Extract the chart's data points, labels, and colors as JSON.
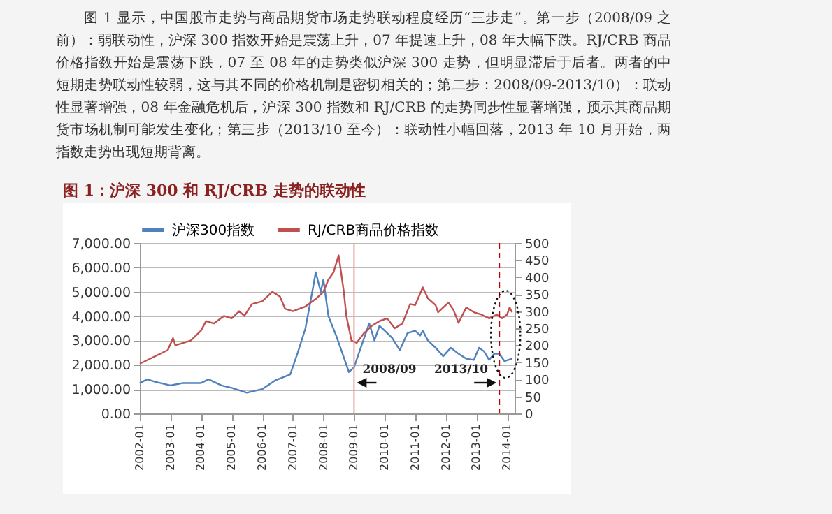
{
  "chart_data": {
    "type": "line",
    "title": "图 1：沪深 300 和 RJ/CRB 走势的联动性",
    "annotations": [
      "图 1 显示，中国股市走势与商品期货市场走势联动程度经历“三步走”。第一步（2008/09 之前）：弱联动性，沪深 300 指数开始是震荡上升，07 年提速上升，08 年大幅下跌。RJ/CRB 商品价格指数开始是震荡下跌，07 至 08 年的走势类似沪深 300 走势，但明显滞后于后者。两者的中短期走势联动性较弱，这与其不同的价格机制是密切相关的；第二步：2008/09-2013/10）：联动性显著增强，08 年金融危机后，沪深 300 指数和 RJ/CRB 的走势同步性显著增强，预示其商品期货市场机制可能发生变化；第三步（2013/10 至今）：联动性小幅回落，2013 年 10 月开始，两指数走势出现短期背离。"
    ],
    "series": [
      {
        "name": "沪深300指数",
        "color": "#4f81bd",
        "x": [
          "2002-01",
          "2002-04",
          "2002-07",
          "2003-01",
          "2003-06",
          "2004-01",
          "2004-04",
          "2004-09",
          "2005-01",
          "2005-07",
          "2006-01",
          "2006-06",
          "2006-12",
          "2007-03",
          "2007-06",
          "2007-09",
          "2007-10",
          "2007-12",
          "2008-01",
          "2008-03",
          "2008-06",
          "2008-09",
          "2008-11",
          "2009-01",
          "2009-04",
          "2009-07",
          "2009-09",
          "2009-11",
          "2010-01",
          "2010-04",
          "2010-07",
          "2010-10",
          "2011-01",
          "2011-03",
          "2011-04",
          "2011-06",
          "2011-09",
          "2011-12",
          "2012-03",
          "2012-06",
          "2012-09",
          "2012-12",
          "2013-02",
          "2013-04",
          "2013-06",
          "2013-08",
          "2013-10",
          "2013-12",
          "2014-03"
        ],
        "values": [
          1250,
          1400,
          1300,
          1150,
          1250,
          1250,
          1400,
          1150,
          1050,
          850,
          1000,
          1350,
          1600,
          2500,
          3500,
          5200,
          5800,
          5000,
          5500,
          4000,
          3200,
          2300,
          1700,
          1900,
          2800,
          3700,
          3000,
          3600,
          3400,
          3100,
          2600,
          3300,
          3400,
          3200,
          3400,
          3000,
          2700,
          2350,
          2700,
          2450,
          2250,
          2200,
          2700,
          2550,
          2200,
          2450,
          2450,
          2150,
          2250
        ]
      },
      {
        "name": "RJ/CRB商品价格指数",
        "color": "#c0504d",
        "axis": "y2",
        "x": [
          "2002-01",
          "2002-06",
          "2002-12",
          "2003-02",
          "2003-03",
          "2003-09",
          "2004-01",
          "2004-03",
          "2004-06",
          "2004-10",
          "2005-01",
          "2005-04",
          "2005-06",
          "2005-09",
          "2006-01",
          "2006-05",
          "2006-08",
          "2006-10",
          "2007-01",
          "2007-06",
          "2007-10",
          "2008-01",
          "2008-03",
          "2008-05",
          "2008-07",
          "2008-09",
          "2008-10",
          "2008-12",
          "2009-02",
          "2009-05",
          "2009-08",
          "2009-11",
          "2010-02",
          "2010-05",
          "2010-08",
          "2010-11",
          "2011-01",
          "2011-04",
          "2011-06",
          "2011-09",
          "2011-10",
          "2012-02",
          "2012-04",
          "2012-06",
          "2012-09",
          "2012-12",
          "2013-03",
          "2013-06",
          "2013-09",
          "2013-11",
          "2014-01",
          "2014-02",
          "2014-03"
        ],
        "values": [
          146,
          164,
          186,
          221,
          200,
          214,
          243,
          271,
          264,
          286,
          279,
          300,
          286,
          321,
          329,
          357,
          343,
          307,
          300,
          314,
          336,
          357,
          393,
          414,
          464,
          357,
          286,
          214,
          207,
          236,
          257,
          271,
          279,
          250,
          264,
          321,
          318,
          370,
          338,
          318,
          297,
          325,
          304,
          266,
          311,
          297,
          290,
          279,
          290,
          279,
          290,
          311,
          297
        ]
      }
    ],
    "xlim": [
      "2002-01",
      "2014-04"
    ],
    "xticks": [
      "2002-01",
      "2003-01",
      "2004-01",
      "2005-01",
      "2006-01",
      "2007-01",
      "2008-01",
      "2009-01",
      "2010-01",
      "2011-01",
      "2012-01",
      "2013-01",
      "2014-01"
    ],
    "ylim": [
      0,
      7000
    ],
    "yticks": [
      {
        "value": 0,
        "label": "0.00"
      },
      {
        "value": 1000,
        "label": "1,000.00"
      },
      {
        "value": 2000,
        "label": "2,000.00"
      },
      {
        "value": 3000,
        "label": "3,000.00"
      },
      {
        "value": 4000,
        "label": "4,000.00"
      },
      {
        "value": 5000,
        "label": "5,000.00"
      },
      {
        "value": 6000,
        "label": "6,000.00"
      },
      {
        "value": 7000,
        "label": "7,000.00"
      }
    ],
    "y2lim": [
      0,
      500
    ],
    "y2ticks": [
      0,
      50,
      100,
      150,
      200,
      250,
      300,
      350,
      400,
      450,
      500
    ],
    "ref_lines": [
      {
        "axis": "x",
        "value": "2009-01",
        "label": "2008/09",
        "color": "#e6a0a0",
        "line_style": "solid"
      },
      {
        "axis": "x",
        "value": "2013-10",
        "label": "2013/10",
        "color": "#c00000",
        "line_style": "dashed"
      }
    ],
    "grid": "y",
    "legend": "top",
    "marker": "none",
    "line_style": "solid"
  }
}
